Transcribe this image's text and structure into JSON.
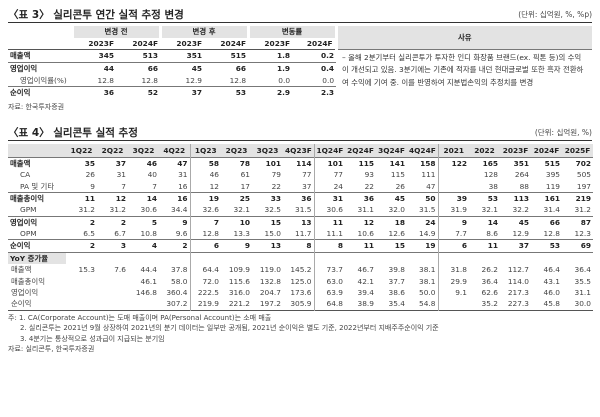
{
  "table3": {
    "title": "〈표 3〉 실리콘투 연간 실적 추정 변경",
    "unit": "(단위: 십억원, %, %p)",
    "groups": [
      "변경 전",
      "변경 후",
      "변동률"
    ],
    "reason_header": "사유",
    "years": [
      "2023F",
      "2024F",
      "2023F",
      "2024F",
      "2023F",
      "2024F"
    ],
    "rows": [
      {
        "label": "매출액",
        "values": [
          "345",
          "513",
          "351",
          "515",
          "1.8",
          "0.2"
        ]
      },
      {
        "label": "영업이익",
        "values": [
          "44",
          "66",
          "45",
          "66",
          "1.9",
          "0.4"
        ]
      },
      {
        "label": "영업이익률(%)",
        "values": [
          "12.8",
          "12.8",
          "12.9",
          "12.8",
          "0.0",
          "0.0"
        ]
      },
      {
        "label": "순이익",
        "values": [
          "36",
          "52",
          "37",
          "53",
          "2.9",
          "2.3"
        ]
      }
    ],
    "reason": "– 올해 2분기부터 실리콘투가 투자한 인디 화장품 브랜드(ex. 픽톤 등)의 수익이 개선되고 있음. 3분기에는 기존에 적자를 내던 현대글로벌 또한 흑자 전환하여 수익에 기여 중. 이를 반영하여 지분법손익의 추정치를 변경",
    "source": "자료: 한국투자증권"
  },
  "table4": {
    "title": "〈표 4〉 실리콘투 실적 추정",
    "unit": "(단위: 십억원, %)",
    "columns": [
      "1Q22",
      "2Q22",
      "3Q22",
      "4Q22",
      "1Q23",
      "2Q23",
      "3Q23",
      "4Q23F",
      "1Q24F",
      "2Q24F",
      "3Q24F",
      "4Q24F",
      "2021",
      "2022",
      "2023F",
      "2024F",
      "2025F"
    ],
    "rows": [
      {
        "label": "매출액",
        "values": [
          "35",
          "37",
          "46",
          "47",
          "58",
          "78",
          "101",
          "114",
          "101",
          "115",
          "141",
          "158",
          "122",
          "165",
          "351",
          "515",
          "702"
        ]
      },
      {
        "label": "CA",
        "values": [
          "26",
          "31",
          "40",
          "31",
          "46",
          "61",
          "79",
          "77",
          "77",
          "93",
          "115",
          "111",
          null,
          "128",
          "264",
          "395",
          "505"
        ]
      },
      {
        "label": "PA 및 기타",
        "values": [
          "9",
          "7",
          "7",
          "16",
          "12",
          "17",
          "22",
          "37",
          "24",
          "22",
          "26",
          "47",
          null,
          "38",
          "88",
          "119",
          "197"
        ]
      },
      {
        "label": "매출총이익",
        "values": [
          "11",
          "12",
          "14",
          "16",
          "19",
          "25",
          "33",
          "36",
          "31",
          "36",
          "45",
          "50",
          "39",
          "53",
          "113",
          "161",
          "219"
        ]
      },
      {
        "label": "GPM",
        "values": [
          "31.2",
          "31.2",
          "30.6",
          "34.4",
          "32.6",
          "32.1",
          "32.5",
          "31.5",
          "30.6",
          "31.1",
          "32.0",
          "31.5",
          "31.9",
          "32.1",
          "32.2",
          "31.4",
          "31.2"
        ]
      },
      {
        "label": "영업이익",
        "values": [
          "2",
          "2",
          "5",
          "9",
          "7",
          "10",
          "15",
          "13",
          "11",
          "12",
          "18",
          "24",
          "9",
          "14",
          "45",
          "66",
          "87"
        ]
      },
      {
        "label": "OPM",
        "values": [
          "6.5",
          "6.7",
          "10.8",
          "9.6",
          "12.8",
          "13.3",
          "15.0",
          "11.7",
          "11.1",
          "10.6",
          "12.6",
          "14.9",
          "7.7",
          "8.6",
          "12.9",
          "12.8",
          "12.3"
        ]
      },
      {
        "label": "순이익",
        "values": [
          "2",
          "3",
          "4",
          "2",
          "6",
          "9",
          "13",
          "8",
          "8",
          "11",
          "15",
          "19",
          "6",
          "11",
          "37",
          "53",
          "69"
        ]
      }
    ],
    "yoy_header": "YoY 증가율",
    "yoy_rows": [
      {
        "label": "매출액",
        "values": [
          "15.3",
          "7.6",
          "44.4",
          "37.8",
          "64.4",
          "109.9",
          "119.0",
          "145.2",
          "73.7",
          "46.7",
          "39.8",
          "38.1",
          "31.8",
          "26.2",
          "112.7",
          "46.4",
          "36.4"
        ]
      },
      {
        "label": "매출총이익",
        "values": [
          null,
          null,
          "46.1",
          "58.0",
          "72.0",
          "115.6",
          "132.8",
          "125.0",
          "63.0",
          "42.1",
          "37.7",
          "38.1",
          "29.9",
          "36.4",
          "114.0",
          "43.1",
          "35.5"
        ]
      },
      {
        "label": "영업이익",
        "values": [
          null,
          null,
          "146.8",
          "360.4",
          "222.5",
          "316.0",
          "204.7",
          "173.6",
          "63.9",
          "39.4",
          "38.6",
          "50.0",
          "9.1",
          "62.6",
          "217.3",
          "46.0",
          "31.1"
        ]
      },
      {
        "label": "순이익",
        "values": [
          null,
          null,
          null,
          "307.2",
          "219.9",
          "221.2",
          "197.2",
          "305.9",
          "64.8",
          "38.9",
          "35.4",
          "54.8",
          null,
          "35.2",
          "227.3",
          "45.8",
          "30.0"
        ]
      }
    ],
    "notes": [
      "주: 1. CA(Corporate Account)는 도매 매출이며 PA(Personal Account)는 소매 매출",
      "2. 실리콘투는 2021년 9월 상장하여 2021년의 분기 데이터는 일부만 공개됨, 2021년 순이익은 별도 기준, 2022년부터 지배주주순이익 기준",
      "3. 4분기는 통상적으로 성과급이 지급되는 분기임"
    ],
    "source": "자료: 실리콘투, 한국투자증권"
  }
}
